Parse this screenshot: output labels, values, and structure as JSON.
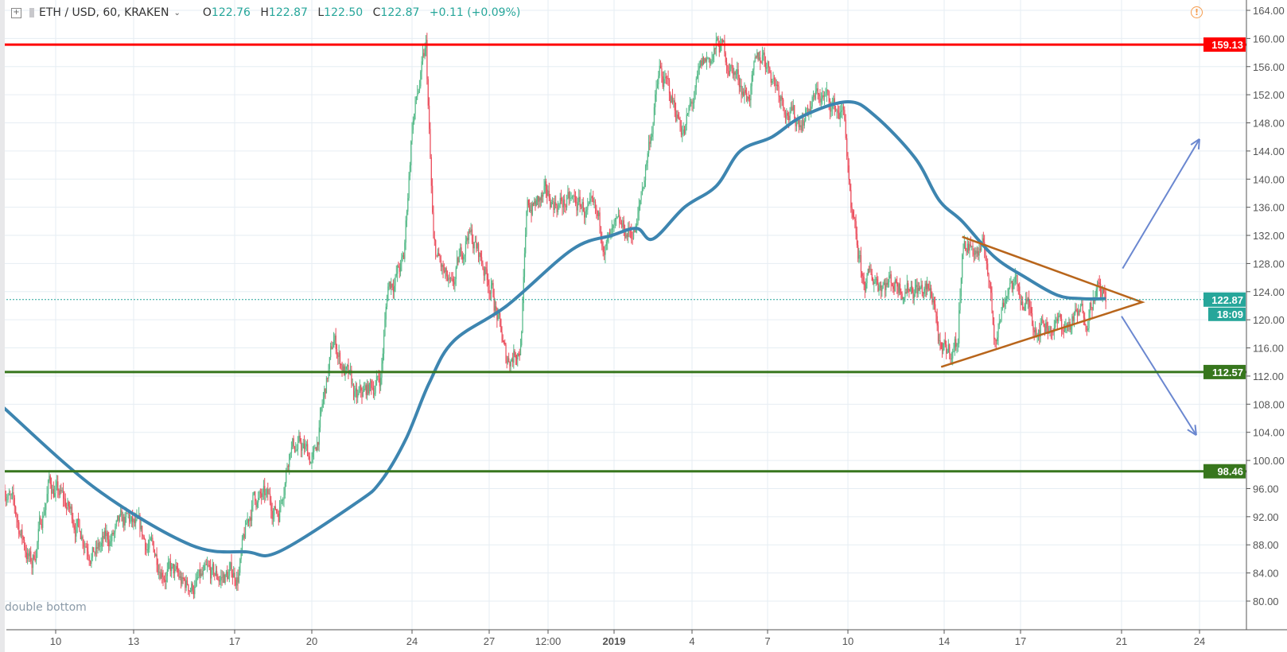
{
  "header": {
    "symbol": "ETH / USD, 60, KRAKEN",
    "open_label": "O",
    "open": "122.76",
    "high_label": "H",
    "high": "122.87",
    "low_label": "L",
    "low": "122.50",
    "close_label": "C",
    "close": "122.87",
    "change": "+0.11 (+0.09%)"
  },
  "alert_icon": "!",
  "annotation": "double bottom",
  "colors": {
    "up": "#53b987",
    "down": "#eb4d5c",
    "ma": "#3d85b0",
    "resistance": "#ff0000",
    "support": "#37761d",
    "triangle": "#b8651b",
    "arrow": "#6a87d0",
    "last_price": "#26a69a"
  },
  "chart_data": {
    "type": "candlestick",
    "ylim": [
      76,
      164.5
    ],
    "price_ticks": [
      "164.00",
      "160.00",
      "156.00",
      "152.00",
      "148.00",
      "144.00",
      "140.00",
      "136.00",
      "132.00",
      "128.00",
      "124.00",
      "120.00",
      "116.00",
      "112.00",
      "108.00",
      "104.00",
      "100.00",
      "96.00",
      "92.00",
      "88.00",
      "84.00",
      "80.00"
    ],
    "time_ticks": [
      {
        "label": "10",
        "date": "2018-12-10 00:00"
      },
      {
        "label": "13",
        "date": "2018-12-13 00:00"
      },
      {
        "label": "17",
        "date": "2018-12-17 00:00"
      },
      {
        "label": "20",
        "date": "2018-12-20 00:00"
      },
      {
        "label": "24",
        "date": "2018-12-24 00:00"
      },
      {
        "label": "27",
        "date": "2018-12-27 00:00"
      },
      {
        "label": "12:00",
        "date": "2018-12-29 12:00"
      },
      {
        "label": "2019",
        "date": "2019-01-01 00:00"
      },
      {
        "label": "4",
        "date": "2019-01-04 00:00"
      },
      {
        "label": "7",
        "date": "2019-01-07 00:00"
      },
      {
        "label": "10",
        "date": "2019-01-10 00:00"
      },
      {
        "label": "14",
        "date": "2019-01-14 00:00"
      },
      {
        "label": "17",
        "date": "2019-01-17 00:00"
      },
      {
        "label": "21",
        "date": "2019-01-21 00:00"
      },
      {
        "label": "24",
        "date": "2019-01-24 00:00"
      }
    ],
    "price_path": [
      [
        "2018-12-08 00:00",
        97
      ],
      [
        "2018-12-09 02:00",
        85
      ],
      [
        "2018-12-09 18:00",
        97
      ],
      [
        "2018-12-11 13:00",
        87
      ],
      [
        "2018-12-12 19:00",
        91
      ],
      [
        "2018-12-14 23:00",
        82
      ],
      [
        "2018-12-17 03:00",
        84
      ],
      [
        "2018-12-17 18:00",
        95
      ],
      [
        "2018-12-18 17:00",
        93
      ],
      [
        "2018-12-19 04:00",
        103
      ],
      [
        "2018-12-20 02:00",
        100
      ],
      [
        "2018-12-20 21:00",
        117
      ],
      [
        "2018-12-21 19:00",
        108
      ],
      [
        "2018-12-22 18:00",
        112
      ],
      [
        "2018-12-23 01:00",
        125
      ],
      [
        "2018-12-23 16:00",
        128
      ],
      [
        "2018-12-24 00:00",
        148
      ],
      [
        "2018-12-24 13:00",
        158
      ],
      [
        "2018-12-24 20:00",
        130
      ],
      [
        "2018-12-25 13:00",
        123
      ],
      [
        "2018-12-26 04:00",
        133
      ],
      [
        "2018-12-27 02:00",
        125
      ],
      [
        "2018-12-27 17:00",
        114
      ],
      [
        "2018-12-28 08:00",
        117
      ],
      [
        "2018-12-28 15:00",
        136
      ],
      [
        "2018-12-29 14:00",
        137
      ],
      [
        "2018-12-30 19:00",
        136
      ],
      [
        "2018-12-31 18:00",
        131
      ],
      [
        "2019-01-01 21:00",
        133
      ],
      [
        "2019-01-02 07:00",
        144
      ],
      [
        "2019-01-02 18:00",
        155
      ],
      [
        "2019-01-03 17:00",
        147
      ],
      [
        "2019-01-04 11:00",
        156
      ],
      [
        "2019-01-05 02:00",
        159
      ],
      [
        "2019-01-06 05:00",
        152
      ],
      [
        "2019-01-06 20:00",
        158
      ],
      [
        "2019-01-08 01:00",
        148
      ],
      [
        "2019-01-08 22:00",
        152
      ],
      [
        "2019-01-09 21:00",
        149
      ],
      [
        "2019-01-10 03:00",
        134
      ],
      [
        "2019-01-10 15:00",
        125
      ],
      [
        "2019-01-11 03:00",
        126
      ],
      [
        "2019-01-12 19:00",
        125
      ],
      [
        "2019-01-13 14:00",
        123
      ],
      [
        "2019-01-13 21:00",
        114
      ],
      [
        "2019-01-14 13:00",
        117
      ],
      [
        "2019-01-14 17:00",
        131
      ],
      [
        "2019-01-15 16:00",
        129
      ],
      [
        "2019-01-15 23:00",
        118
      ],
      [
        "2019-01-16 14:00",
        126
      ],
      [
        "2019-01-17 13:00",
        120
      ],
      [
        "2019-01-18 19:00",
        119
      ],
      [
        "2019-01-19 14:00",
        121
      ],
      [
        "2019-01-19 22:00",
        124.5
      ],
      [
        "2019-01-20 09:00",
        122.87
      ]
    ],
    "moving_average": [
      [
        "2018-12-08 00:00",
        107.5
      ],
      [
        "2018-12-11 13:00",
        96
      ],
      [
        "2018-12-15 06:00",
        88
      ],
      [
        "2018-12-17 11:00",
        87
      ],
      [
        "2018-12-18 17:00",
        87
      ],
      [
        "2018-12-21 19:00",
        94
      ],
      [
        "2018-12-22 18:00",
        97
      ],
      [
        "2018-12-23 18:00",
        103
      ],
      [
        "2018-12-24 16:00",
        111
      ],
      [
        "2018-12-25 15:00",
        117
      ],
      [
        "2018-12-27 18:00",
        122
      ],
      [
        "2018-12-30 10:00",
        130
      ],
      [
        "2018-12-31 22:00",
        132
      ],
      [
        "2019-01-01 21:00",
        133
      ],
      [
        "2019-01-02 12:00",
        131.5
      ],
      [
        "2019-01-03 17:00",
        136
      ],
      [
        "2019-01-04 23:00",
        139
      ],
      [
        "2019-01-05 22:00",
        144
      ],
      [
        "2019-01-07 04:00",
        146
      ],
      [
        "2019-01-08 08:00",
        149
      ],
      [
        "2019-01-10 00:00",
        151
      ],
      [
        "2019-01-11 03:00",
        149
      ],
      [
        "2019-01-12 19:00",
        143
      ],
      [
        "2019-01-13 19:00",
        137
      ],
      [
        "2019-01-14 17:00",
        134
      ],
      [
        "2019-01-15 23:00",
        129
      ],
      [
        "2019-01-17 05:00",
        126
      ],
      [
        "2019-01-18 11:00",
        123.5
      ],
      [
        "2019-01-19 10:00",
        123
      ],
      [
        "2019-01-20 09:00",
        123
      ]
    ],
    "levels": [
      {
        "price": 159.13,
        "label": "159.13",
        "kind": "resistance"
      },
      {
        "price": 112.57,
        "label": "112.57",
        "kind": "support"
      },
      {
        "price": 98.46,
        "label": "98.46",
        "kind": "support"
      }
    ],
    "last_price": {
      "price": 122.87,
      "label": "122.87",
      "countdown": "18:09"
    },
    "triangle": [
      [
        "2019-01-14 17:00",
        131.8
      ],
      [
        "2019-01-21 19:00",
        122.5
      ],
      [
        "2019-01-13 21:00",
        113.3
      ]
    ],
    "arrows": [
      {
        "from": [
          "2019-01-21 01:00",
          127.3
        ],
        "to": [
          "2019-01-24 00:00",
          145.7
        ]
      },
      {
        "from": [
          "2019-01-21 00:00",
          120.5
        ],
        "to": [
          "2019-01-23 21:00",
          103.6
        ]
      }
    ]
  }
}
